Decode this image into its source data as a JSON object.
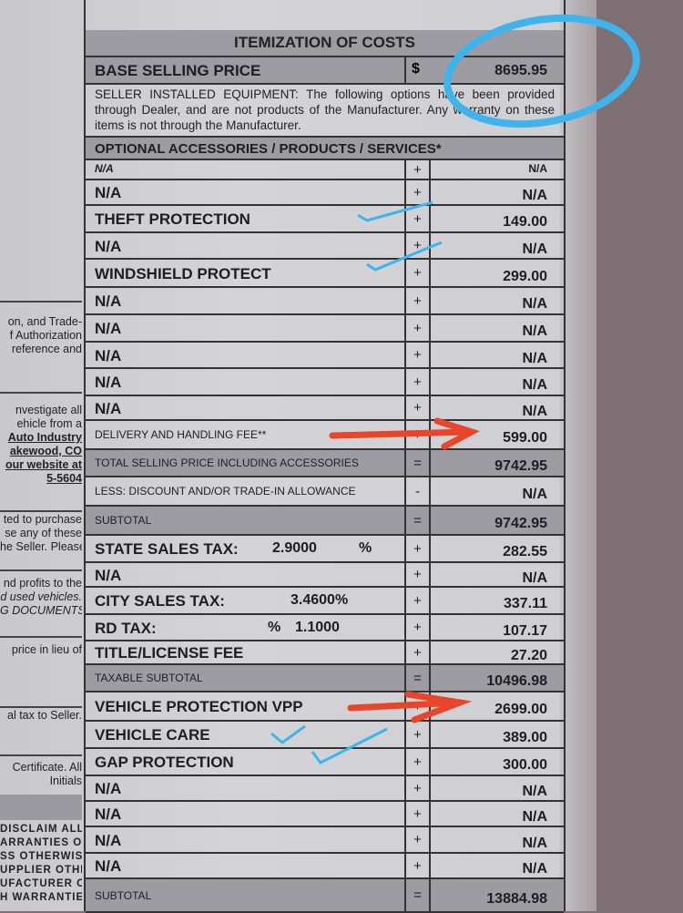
{
  "title": "ITEMIZATION OF COSTS",
  "base": {
    "label": "BASE SELLING PRICE",
    "symbol": "$",
    "amount": "8695.95"
  },
  "seller_text": "SELLER INSTALLED EQUIPMENT: The following options have been provided through Dealer, and are not products of the Manufacturer. Any warranty on these items is not through the Manufacturer.",
  "optional_header": "OPTIONAL ACCESSORIES / PRODUCTS / SERVICES*",
  "rows": [
    {
      "label": "N/A",
      "sym": "+",
      "amount": "N/A",
      "style": "italic"
    },
    {
      "label": "N/A",
      "sym": "+",
      "amount": "N/A"
    },
    {
      "label": "THEFT PROTECTION",
      "sym": "+",
      "amount": "149.00"
    },
    {
      "label": "N/A",
      "sym": "+",
      "amount": "N/A"
    },
    {
      "label": "WINDSHIELD PROTECT",
      "sym": "+",
      "amount": "299.00"
    },
    {
      "label": "N/A",
      "sym": "+",
      "amount": "N/A"
    },
    {
      "label": "N/A",
      "sym": "+",
      "amount": "N/A"
    },
    {
      "label": "N/A",
      "sym": "+",
      "amount": "N/A"
    },
    {
      "label": "N/A",
      "sym": "+",
      "amount": "N/A"
    },
    {
      "label": "N/A",
      "sym": "+",
      "amount": "N/A"
    },
    {
      "label": "DELIVERY AND HANDLING FEE**",
      "sym": "+",
      "amount": "599.00",
      "style": "small"
    },
    {
      "label": "TOTAL SELLING PRICE INCLUDING ACCESSORIES",
      "sym": "=",
      "amount": "9742.95",
      "style": "small",
      "gray": true
    },
    {
      "label": "LESS: DISCOUNT AND/OR TRADE-IN ALLOWANCE",
      "sym": "-",
      "amount": "N/A",
      "style": "small"
    },
    {
      "label": "SUBTOTAL",
      "sym": "=",
      "amount": "9742.95",
      "style": "small",
      "gray": true
    },
    {
      "label": "STATE SALES TAX:",
      "rate": "2.9000",
      "unit": "%",
      "sym": "+",
      "amount": "282.55"
    },
    {
      "label": "N/A",
      "sym": "+",
      "amount": "N/A"
    },
    {
      "label": "CITY SALES TAX:",
      "rate": "3.4600%",
      "sym": "+",
      "amount": "337.11"
    },
    {
      "label": "RD TAX:",
      "unit": "%",
      "rate": "1.1000",
      "sym": "+",
      "amount": "107.17"
    },
    {
      "label": "TITLE/LICENSE FEE",
      "sym": "+",
      "amount": "27.20"
    },
    {
      "label": "TAXABLE SUBTOTAL",
      "sym": "=",
      "amount": "10496.98",
      "style": "small",
      "gray": true
    },
    {
      "label": "VEHICLE PROTECTION VPP",
      "sym": "+",
      "amount": "2699.00"
    },
    {
      "label": "VEHICLE CARE",
      "sym": "+",
      "amount": "389.00"
    },
    {
      "label": "GAP PROTECTION",
      "sym": "+",
      "amount": "300.00"
    },
    {
      "label": "N/A",
      "sym": "+",
      "amount": "N/A"
    },
    {
      "label": "N/A",
      "sym": "+",
      "amount": "N/A"
    },
    {
      "label": "N/A",
      "sym": "+",
      "amount": "N/A"
    },
    {
      "label": "N/A",
      "sym": "+",
      "amount": "N/A"
    },
    {
      "label": "SUBTOTAL",
      "sym": "=",
      "amount": "13884.98",
      "style": "small",
      "gray": true
    }
  ],
  "left_column": {
    "block1": [
      "on, and Trade-",
      "f Authorization",
      "reference and"
    ],
    "block2": [
      "nvestigate all",
      "ehicle from a"
    ],
    "block2_links": [
      "Auto Industry",
      "akewood, CO",
      "our website at",
      "5-5604"
    ],
    "block3": [
      "ted to purchase",
      "se any of these",
      "he Seller. Please"
    ],
    "block4": [
      "nd profits to the"
    ],
    "block4_italic": [
      "d used vehicles.",
      "G DOCUMENTS"
    ],
    "block5": [
      "price in lieu of"
    ],
    "block6": [
      "al tax to Seller."
    ],
    "block7": [
      "Certificate. All",
      "Initials"
    ],
    "block8": [
      "DISCLAIM ALL",
      "ARRANTIES OF",
      "SS OTHERWISE",
      "UPPLIER OTHER",
      "UFACTURER OR",
      "H WARRANTIES."
    ]
  },
  "annotation_colors": {
    "circle": "#3fb4ec",
    "check": "#3fb4ec",
    "arrow": "#e8452a"
  }
}
